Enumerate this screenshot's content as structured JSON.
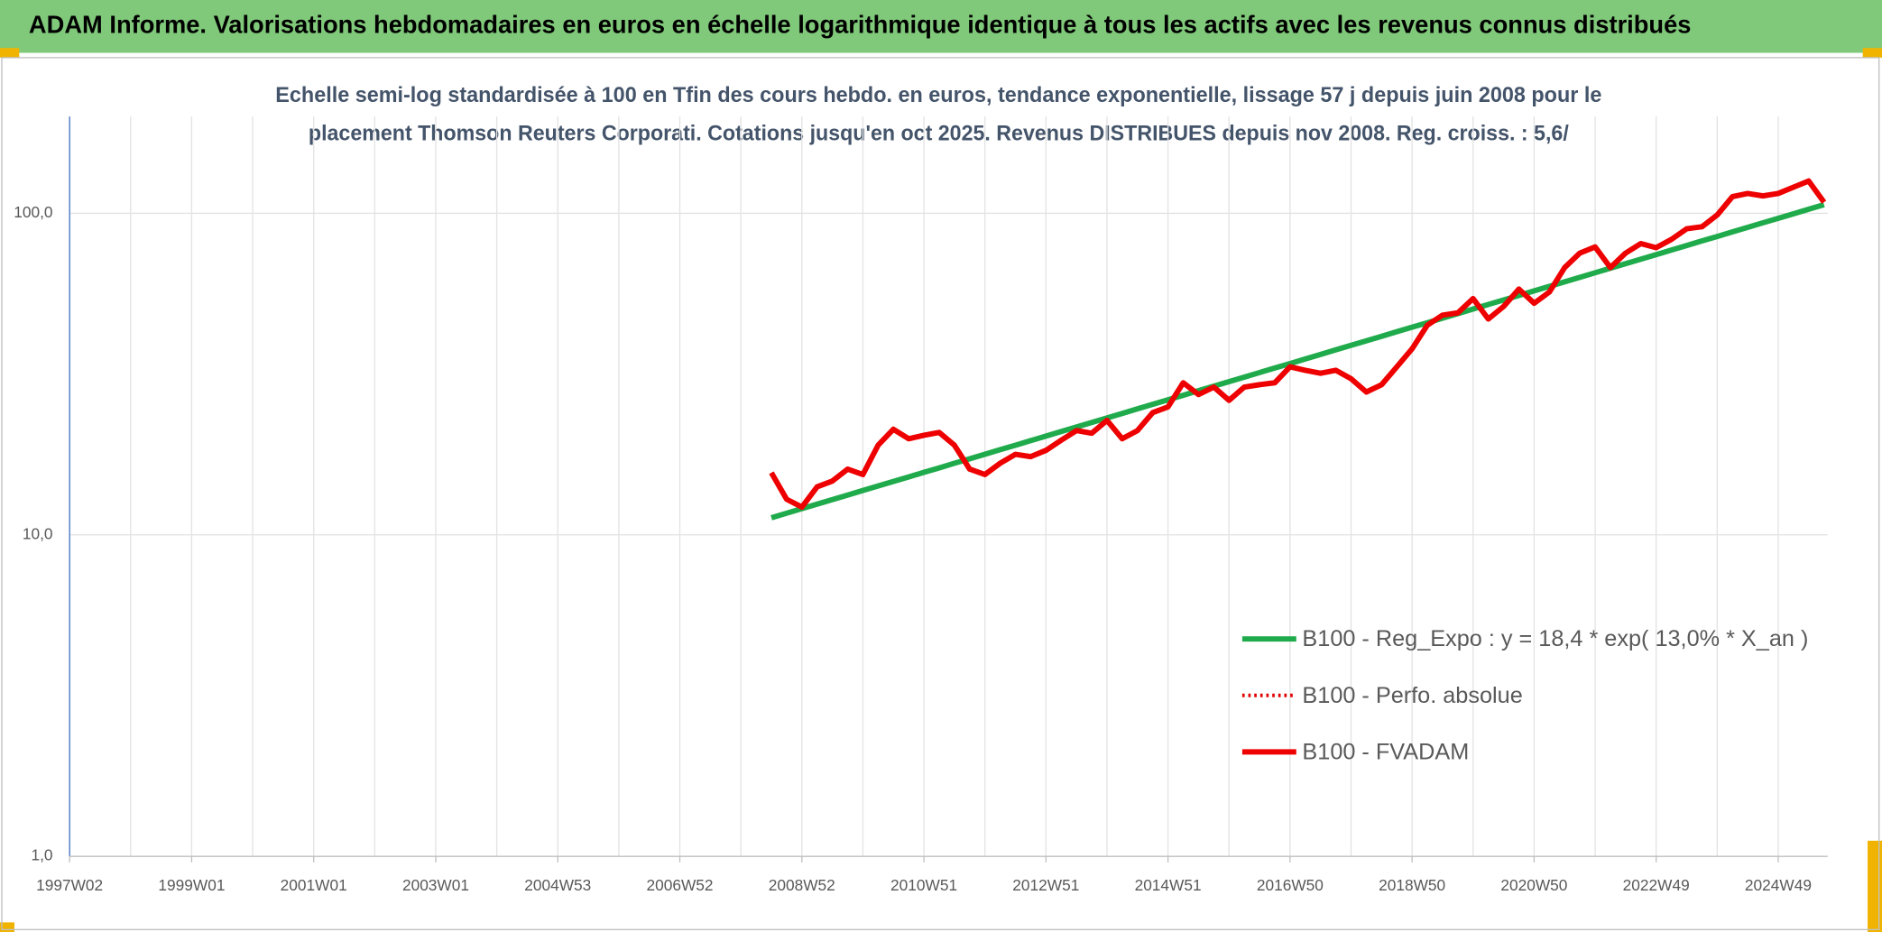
{
  "chart_data": {
    "type": "line",
    "title": "ADAM Informe. Valorisations hebdomadaires en euros en échelle logarithmique identique à tous les actifs avec les revenus connus distribués",
    "subtitle": [
      "Echelle semi-log standardisée à 100 en Tfin des cours hebdo. en euros, tendance exponentielle, lissage 57 j depuis juin 2008 pour le",
      "placement Thomson Reuters Corporati. Cotations jusqu'en oct 2025. Revenus DISTRIBUES depuis nov 2008. Reg. croiss. : 5,6/"
    ],
    "log_scale": true,
    "grid": true,
    "legend": "lower right",
    "ylim": [
      1,
      200
    ],
    "yticks": [
      {
        "value": 1,
        "label": "1,0"
      },
      {
        "value": 10,
        "label": "10,0"
      },
      {
        "value": 100,
        "label": "100,0"
      }
    ],
    "categories": [
      "1997W02",
      null,
      null,
      null,
      null,
      null,
      null,
      null,
      "1999W01",
      null,
      null,
      null,
      null,
      null,
      null,
      null,
      "2001W01",
      null,
      null,
      null,
      null,
      null,
      null,
      null,
      "2003W01",
      null,
      null,
      null,
      null,
      null,
      null,
      null,
      "2004W53",
      null,
      null,
      null,
      null,
      null,
      null,
      null,
      "2006W52",
      null,
      null,
      null,
      null,
      null,
      null,
      null,
      "2008W52",
      null,
      null,
      null,
      null,
      null,
      null,
      null,
      "2010W51",
      null,
      null,
      null,
      null,
      null,
      null,
      null,
      "2012W51",
      null,
      null,
      null,
      null,
      null,
      null,
      null,
      "2014W51",
      null,
      null,
      null,
      null,
      null,
      null,
      null,
      "2016W50",
      null,
      null,
      null,
      null,
      null,
      null,
      null,
      "2018W50",
      null,
      null,
      null,
      null,
      null,
      null,
      null,
      "2020W50",
      null,
      null,
      null,
      null,
      null,
      null,
      null,
      "2022W49",
      null,
      null,
      null,
      null,
      null,
      null,
      null,
      "2024W49",
      null,
      null,
      null
    ],
    "series": [
      {
        "name": "B100 - Reg_Expo : y = 18,4 * exp( 13,0% *  X_an )",
        "color": "#1fab4b",
        "style": "solid",
        "values": [
          null,
          null,
          null,
          null,
          null,
          null,
          null,
          null,
          null,
          null,
          null,
          null,
          null,
          null,
          null,
          null,
          null,
          null,
          null,
          null,
          null,
          null,
          null,
          null,
          null,
          null,
          null,
          null,
          null,
          null,
          null,
          null,
          null,
          null,
          null,
          null,
          null,
          null,
          null,
          null,
          null,
          null,
          null,
          null,
          null,
          null,
          11.3,
          11.67,
          12.06,
          12.46,
          12.87,
          13.29,
          13.73,
          14.19,
          14.65,
          15.14,
          15.64,
          16.15,
          16.69,
          17.24,
          17.81,
          18.4,
          19.0,
          19.63,
          20.28,
          20.95,
          21.64,
          22.35,
          23.09,
          23.86,
          24.64,
          25.46,
          26.3,
          27.17,
          28.06,
          28.99,
          29.95,
          30.94,
          31.96,
          33.01,
          34.1,
          35.23,
          36.39,
          37.59,
          38.84,
          40.12,
          41.44,
          42.81,
          44.23,
          45.69,
          47.2,
          48.75,
          50.36,
          52.03,
          53.75,
          55.52,
          57.36,
          59.25,
          61.21,
          63.23,
          65.32,
          67.48,
          69.71,
          72.01,
          74.39,
          76.85,
          79.38,
          82.01,
          84.71,
          87.51,
          90.41,
          93.39,
          96.48,
          99.67,
          102.96,
          106.4
        ]
      },
      {
        "name": "B100 - Perfo. absolue",
        "color": "#e00000",
        "style": "dotted",
        "values": [
          null,
          null,
          null,
          null,
          null,
          null,
          null,
          null,
          null,
          null,
          null,
          null,
          null,
          null,
          null,
          null,
          null,
          null,
          null,
          null,
          null,
          null,
          null,
          null,
          null,
          null,
          null,
          null,
          null,
          null,
          null,
          null,
          null,
          null,
          null,
          null,
          null,
          null,
          null,
          null,
          null,
          null,
          null,
          null,
          null,
          null,
          15.6,
          12.9,
          12.2,
          14.1,
          14.7,
          16.0,
          15.4,
          19.0,
          21.3,
          19.9,
          20.4,
          20.8,
          19.0,
          16.0,
          15.4,
          16.7,
          17.8,
          17.5,
          18.3,
          19.7,
          21.1,
          20.7,
          22.7,
          19.9,
          21.1,
          24.0,
          25.0,
          29.7,
          27.3,
          28.8,
          26.2,
          28.8,
          29.3,
          29.7,
          33.3,
          32.5,
          31.8,
          32.5,
          30.6,
          27.8,
          29.3,
          33.3,
          37.9,
          44.9,
          48.2,
          49.0,
          54.3,
          46.9,
          51.3,
          58.1,
          52.5,
          56.9,
          67.8,
          75.2,
          78.6,
          67.8,
          75.2,
          80.5,
          78.2,
          83.0,
          89.5,
          90.8,
          98.8,
          112.7,
          115.2,
          113.3,
          115.2,
          120.5,
          126.0,
          108.2
        ]
      },
      {
        "name": "B100 - FVADAM",
        "color": "#ee0000",
        "style": "solid",
        "values": [
          null,
          null,
          null,
          null,
          null,
          null,
          null,
          null,
          null,
          null,
          null,
          null,
          null,
          null,
          null,
          null,
          null,
          null,
          null,
          null,
          null,
          null,
          null,
          null,
          null,
          null,
          null,
          null,
          null,
          null,
          null,
          null,
          null,
          null,
          null,
          null,
          null,
          null,
          null,
          null,
          null,
          null,
          null,
          null,
          null,
          null,
          15.6,
          12.9,
          12.2,
          14.1,
          14.7,
          16.0,
          15.4,
          19.0,
          21.3,
          19.9,
          20.4,
          20.8,
          19.0,
          16.0,
          15.4,
          16.7,
          17.8,
          17.5,
          18.3,
          19.7,
          21.1,
          20.7,
          22.7,
          19.9,
          21.1,
          24.0,
          25.0,
          29.7,
          27.3,
          28.8,
          26.2,
          28.8,
          29.3,
          29.7,
          33.3,
          32.5,
          31.8,
          32.5,
          30.6,
          27.8,
          29.3,
          33.3,
          37.9,
          44.9,
          48.2,
          49.0,
          54.3,
          46.9,
          51.3,
          58.1,
          52.5,
          56.9,
          67.8,
          75.2,
          78.6,
          67.8,
          75.2,
          80.5,
          78.2,
          83.0,
          89.5,
          90.8,
          98.8,
          112.7,
          115.2,
          113.3,
          115.2,
          120.5,
          126.0,
          108.2
        ]
      }
    ]
  }
}
